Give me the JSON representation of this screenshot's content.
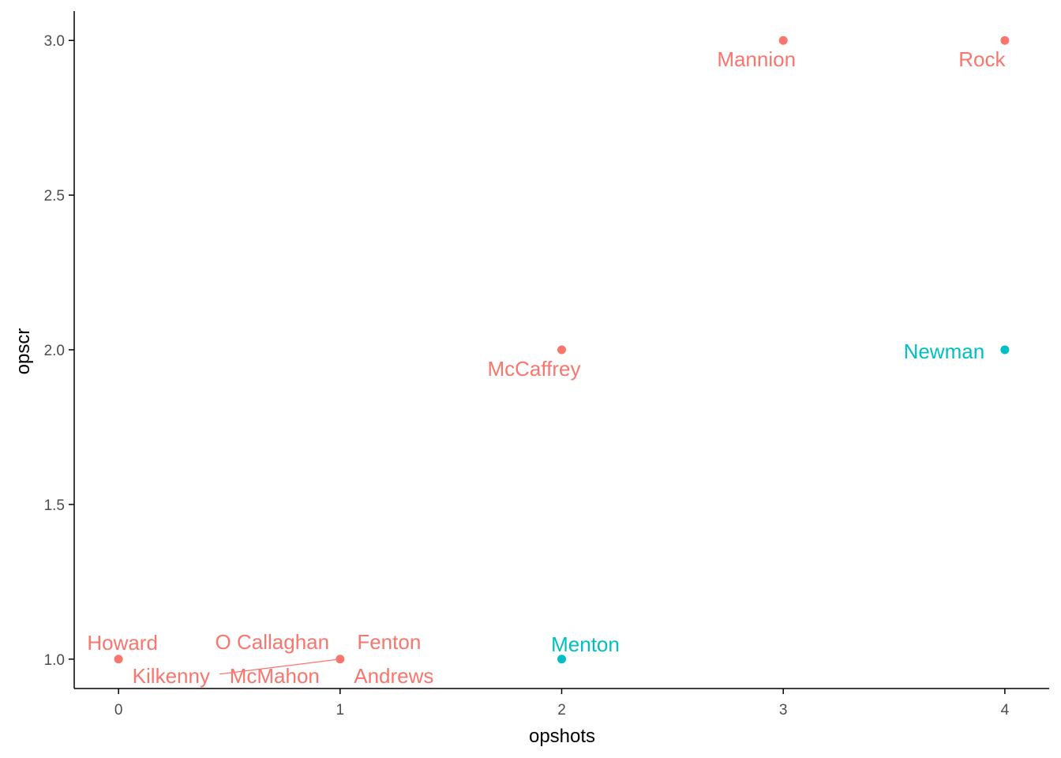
{
  "chart_data": {
    "type": "scatter",
    "title": "",
    "xlabel": "opshots",
    "ylabel": "opscr",
    "xlim": [
      -0.2,
      4.2
    ],
    "ylim": [
      0.905,
      3.095
    ],
    "xticks": [
      0,
      1,
      2,
      3,
      4
    ],
    "xtick_labels": [
      "0",
      "1",
      "2",
      "3",
      "4"
    ],
    "yticks": [
      1.0,
      1.5,
      2.0,
      2.5,
      3.0
    ],
    "ytick_labels": [
      "1.0",
      "1.5",
      "2.0",
      "2.5",
      "3.0"
    ],
    "grid": false,
    "legend": "none",
    "colors": {
      "group_a": "#F8766D",
      "group_b": "#00BFC4",
      "axis": "#000000",
      "tick_text": "#4D4D4D"
    },
    "points": [
      {
        "x": 0,
        "y": 1,
        "group": "group_a"
      },
      {
        "x": 1,
        "y": 1,
        "group": "group_a"
      },
      {
        "x": 2,
        "y": 2,
        "group": "group_a"
      },
      {
        "x": 3,
        "y": 3,
        "group": "group_a"
      },
      {
        "x": 4,
        "y": 3,
        "group": "group_a"
      },
      {
        "x": 2,
        "y": 1,
        "group": "group_b"
      },
      {
        "x": 4,
        "y": 2,
        "group": "group_b"
      }
    ],
    "labels": [
      {
        "text": "Howard",
        "x": 0,
        "y": 1,
        "group": "group_a"
      },
      {
        "text": "O Callaghan",
        "x": 1,
        "y": 1,
        "group": "group_a"
      },
      {
        "text": "Fenton",
        "x": 1,
        "y": 1,
        "group": "group_a"
      },
      {
        "text": "Kilkenny",
        "x": 1,
        "y": 1,
        "group": "group_a"
      },
      {
        "text": "McMahon",
        "x": 1,
        "y": 1,
        "group": "group_a"
      },
      {
        "text": "Andrews",
        "x": 1,
        "y": 1,
        "group": "group_a"
      },
      {
        "text": "McCaffrey",
        "x": 2,
        "y": 2,
        "group": "group_a"
      },
      {
        "text": "Mannion",
        "x": 3,
        "y": 3,
        "group": "group_a"
      },
      {
        "text": "Rock",
        "x": 4,
        "y": 3,
        "group": "group_a"
      },
      {
        "text": "Menton",
        "x": 2,
        "y": 1,
        "group": "group_b"
      },
      {
        "text": "Newman",
        "x": 4,
        "y": 2,
        "group": "group_b"
      }
    ]
  }
}
